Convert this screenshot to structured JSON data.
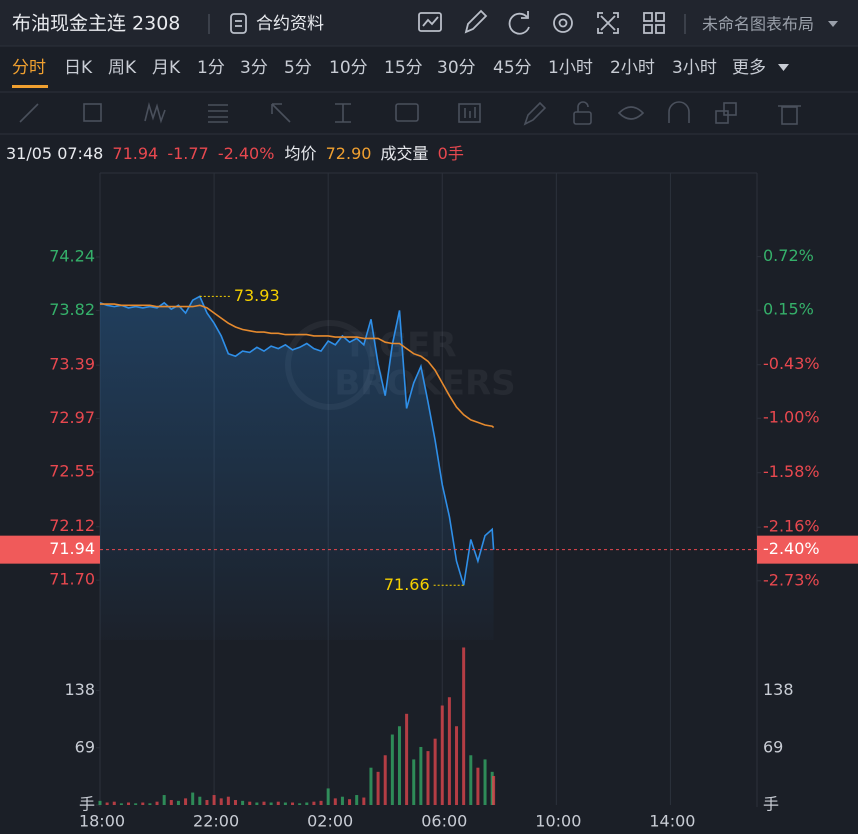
{
  "header": {
    "title": "布油现金主连 2308",
    "contract_info": "合约资料",
    "layout": "未命名图表布局"
  },
  "timeframes": {
    "items": [
      "分时",
      "日K",
      "周K",
      "月K",
      "1分",
      "3分",
      "5分",
      "10分",
      "15分",
      "30分",
      "45分",
      "1小时",
      "2小时",
      "3小时",
      "更多"
    ],
    "selected": 0
  },
  "info": {
    "datetime": "31/05 07:48",
    "change": "-1.77",
    "change_pct": "-2.40%",
    "avg_label": "均价",
    "avg": "72.90",
    "volume_label": "成交量",
    "volume": "0手"
  },
  "chart_data": {
    "type": "line",
    "x": [
      "18:00",
      "18:15",
      "18:30",
      "18:45",
      "19:00",
      "19:15",
      "19:30",
      "19:45",
      "20:00",
      "20:15",
      "20:30",
      "20:45",
      "21:00",
      "21:15",
      "21:30",
      "21:45",
      "22:00",
      "22:15",
      "22:30",
      "22:45",
      "23:00",
      "23:15",
      "23:30",
      "23:45",
      "00:00",
      "00:15",
      "00:30",
      "00:45",
      "01:00",
      "01:15",
      "01:30",
      "01:45",
      "02:00",
      "02:15",
      "02:30",
      "02:45",
      "03:00",
      "03:15",
      "03:30",
      "03:45",
      "04:00",
      "04:15",
      "04:30",
      "04:45",
      "05:00",
      "05:15",
      "05:30",
      "05:45",
      "06:00",
      "06:15",
      "06:30",
      "06:45",
      "07:00",
      "07:15",
      "07:30",
      "07:45",
      "07:48"
    ],
    "xlim": [
      "18:00",
      "17:00"
    ],
    "xticks": [
      "18:00",
      "22:00",
      "02:00",
      "06:00",
      "10:00",
      "14:00"
    ],
    "series": [
      {
        "color": "#2f8fe8",
        "values": [
          73.88,
          73.86,
          73.85,
          73.86,
          73.84,
          73.85,
          73.84,
          73.85,
          73.84,
          73.88,
          73.83,
          73.86,
          73.8,
          73.9,
          73.93,
          73.8,
          73.72,
          73.62,
          73.48,
          73.46,
          73.5,
          73.49,
          73.53,
          73.5,
          73.54,
          73.52,
          73.55,
          73.51,
          73.53,
          73.56,
          73.52,
          73.5,
          73.58,
          73.55,
          73.62,
          73.57,
          73.6,
          73.55,
          73.75,
          73.4,
          73.15,
          73.55,
          73.82,
          73.05,
          73.25,
          73.38,
          73.1,
          72.8,
          72.45,
          72.2,
          71.85,
          71.66,
          72.02,
          71.85,
          72.05,
          72.1,
          71.94
        ]
      },
      {
        "color": "#e68a2e",
        "values": [
          73.87,
          73.87,
          73.87,
          73.86,
          73.86,
          73.86,
          73.86,
          73.86,
          73.85,
          73.85,
          73.85,
          73.85,
          73.85,
          73.85,
          73.86,
          73.84,
          73.8,
          73.76,
          73.72,
          73.69,
          73.67,
          73.66,
          73.65,
          73.65,
          73.64,
          73.64,
          73.63,
          73.63,
          73.63,
          73.63,
          73.62,
          73.62,
          73.62,
          73.61,
          73.61,
          73.61,
          73.61,
          73.6,
          73.6,
          73.6,
          73.57,
          73.56,
          73.56,
          73.52,
          73.48,
          73.46,
          73.42,
          73.35,
          73.25,
          73.15,
          73.06,
          73.0,
          72.96,
          72.94,
          72.92,
          72.91,
          72.9
        ]
      }
    ],
    "ylim": [
      71.23,
      74.9
    ],
    "yticks": [
      74.24,
      73.82,
      73.39,
      72.97,
      72.55,
      72.12,
      {
        "value": 71.7,
        "label": "71.70"
      }
    ],
    "y2lim": [
      -3.36,
      1.61
    ],
    "y2ticks": [
      {
        "value": 0.72,
        "label": "0.72%"
      },
      {
        "value": 0.15,
        "label": "0.15%"
      },
      {
        "value": -0.43,
        "label": "-0.43%"
      },
      {
        "value": -1,
        "label": "-1.00%"
      },
      {
        "value": -1.58,
        "label": "-1.58%"
      },
      {
        "value": -2.16,
        "label": "-2.16%"
      },
      {
        "value": -2.73,
        "label": "-2.73%"
      }
    ],
    "last_price": 71.94,
    "up_color": "#35b06a",
    "down_color": "#e8484f",
    "annotations": [
      {
        "value": 73.93,
        "x": "21:30"
      },
      {
        "value": 71.66,
        "x": "06:45"
      }
    ],
    "volume": {
      "type": "bar",
      "values": [
        5,
        3,
        4,
        2,
        3,
        2,
        3,
        2,
        4,
        12,
        6,
        5,
        8,
        15,
        10,
        6,
        12,
        8,
        10,
        6,
        5,
        4,
        3,
        4,
        3,
        4,
        3,
        3,
        2,
        3,
        4,
        5,
        20,
        8,
        10,
        7,
        12,
        9,
        45,
        40,
        60,
        85,
        95,
        110,
        55,
        70,
        65,
        80,
        120,
        130,
        95,
        190,
        60,
        45,
        55,
        40,
        35
      ],
      "ylim": [
        0,
        193
      ],
      "yticks": [
        {
          "value": 0,
          "label": "手"
        },
        69,
        138
      ]
    },
    "watermark": [
      "TIGER",
      "BROKERS"
    ]
  }
}
